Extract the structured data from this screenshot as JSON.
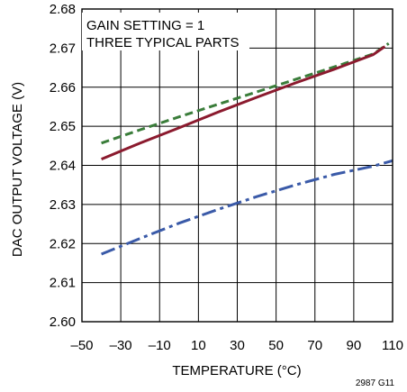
{
  "chart_data": {
    "type": "line",
    "xlabel": "TEMPERATURE (°C)",
    "ylabel": "DAC OUTPUT VOLTAGE (V)",
    "xlim": [
      -50,
      110
    ],
    "ylim": [
      2.6,
      2.68
    ],
    "x_ticks": [
      -50,
      -30,
      -10,
      10,
      30,
      50,
      70,
      90,
      110
    ],
    "x_tick_labels": [
      "–50",
      "–30",
      "–10",
      "10",
      "30",
      "50",
      "70",
      "90",
      "110"
    ],
    "y_ticks": [
      2.6,
      2.61,
      2.62,
      2.63,
      2.64,
      2.65,
      2.66,
      2.67,
      2.68
    ],
    "y_tick_labels": [
      "2.60",
      "2.61",
      "2.62",
      "2.63",
      "2.64",
      "2.65",
      "2.66",
      "2.67",
      "2.68"
    ],
    "grid": true,
    "annotations": [
      "GAIN SETTING = 1",
      "THREE TYPICAL PARTS"
    ],
    "figure_id": "2987 G11",
    "series": [
      {
        "color": "#3a7d3a",
        "style": "dashed",
        "x": [
          -40,
          -20,
          0,
          20,
          40,
          60,
          80,
          100,
          108
        ],
        "y": [
          2.6457,
          2.6491,
          2.6524,
          2.6556,
          2.6588,
          2.662,
          2.6652,
          2.6685,
          2.6712
        ]
      },
      {
        "color": "#8b1a2e",
        "style": "solid",
        "x": [
          -40,
          -20,
          0,
          20,
          40,
          60,
          80,
          100,
          106
        ],
        "y": [
          2.6416,
          2.6457,
          2.6496,
          2.6536,
          2.6574,
          2.6611,
          2.6646,
          2.6683,
          2.6704
        ]
      },
      {
        "color": "#3a5aa8",
        "style": "dash-dot",
        "x": [
          -40,
          -20,
          0,
          20,
          40,
          60,
          80,
          100,
          110
        ],
        "y": [
          2.6173,
          2.6213,
          2.6252,
          2.6287,
          2.632,
          2.635,
          2.6377,
          2.6398,
          2.6412
        ]
      }
    ]
  }
}
